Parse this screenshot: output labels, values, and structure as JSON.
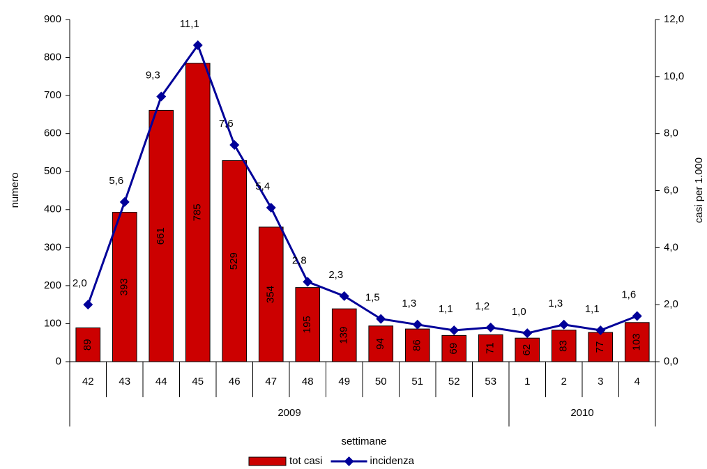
{
  "chart_data": {
    "type": "bar",
    "x_label": "settimane",
    "y_label": "numero",
    "y2_label": "casi per 1.000",
    "groups": [
      {
        "label": "2009",
        "categories": [
          "42",
          "43",
          "44",
          "45",
          "46",
          "47",
          "48",
          "49",
          "50",
          "51",
          "52",
          "53"
        ]
      },
      {
        "label": "2010",
        "categories": [
          "1",
          "2",
          "3",
          "4"
        ]
      }
    ],
    "series": [
      {
        "name": "tot casi",
        "type": "bar",
        "color": "#cc0000",
        "values": [
          89,
          393,
          661,
          785,
          529,
          354,
          195,
          139,
          94,
          86,
          69,
          71,
          62,
          83,
          77,
          103
        ]
      },
      {
        "name": "incidenza",
        "type": "line",
        "axis": "y2",
        "color": "#000099",
        "values": [
          2.0,
          5.6,
          9.3,
          11.1,
          7.6,
          5.4,
          2.8,
          2.3,
          1.5,
          1.3,
          1.1,
          1.2,
          1.0,
          1.3,
          1.1,
          1.6
        ],
        "value_labels": [
          "2,0",
          "5,6",
          "9,3",
          "11,1",
          "7,6",
          "5,4",
          "2,8",
          "2,3",
          "1,5",
          "1,3",
          "1,1",
          "1,2",
          "1,0",
          "1,3",
          "1,1",
          "1,6"
        ]
      }
    ],
    "ylim": [
      0,
      900
    ],
    "yticks": [
      0,
      100,
      200,
      300,
      400,
      500,
      600,
      700,
      800,
      900
    ],
    "y2lim": [
      0,
      12
    ],
    "y2ticks": [
      {
        "value": 0,
        "label": "0,0"
      },
      {
        "value": 2,
        "label": "2,0"
      },
      {
        "value": 4,
        "label": "4,0"
      },
      {
        "value": 6,
        "label": "6,0"
      },
      {
        "value": 8,
        "label": "8,0"
      },
      {
        "value": 10,
        "label": "10,0"
      },
      {
        "value": 12,
        "label": "12,0"
      }
    ],
    "grid": false,
    "legend": "bottom"
  }
}
